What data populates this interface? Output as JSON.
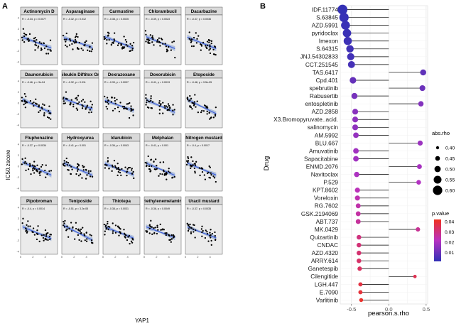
{
  "chart_data": [
    {
      "type": "scatter",
      "panel_label": "A",
      "xlabel": "YAP1",
      "ylabel": "IC50.zscore",
      "xticks": [
        0,
        2,
        4
      ],
      "yticks": [
        -4,
        -2,
        0,
        2,
        4
      ],
      "xlim": [
        0,
        6
      ],
      "ylim": [
        -4.5,
        4.5
      ],
      "facets": [
        {
          "title": "Actinomycin D",
          "stat": "R = -0.34, p = 0.0077",
          "intercept": 0.6,
          "slope": -0.42
        },
        {
          "title": "Asparaginase",
          "stat": "R = -0.32, p = 0.012",
          "intercept": 0.5,
          "slope": -0.38
        },
        {
          "title": "Carmustine",
          "stat": "R = -0.38, p = 0.0025",
          "intercept": 0.7,
          "slope": -0.45
        },
        {
          "title": "Chlorambucil",
          "stat": "R = -0.39, p = 0.0023",
          "intercept": 0.7,
          "slope": -0.46
        },
        {
          "title": "Dacarbazine",
          "stat": "R = -0.37, p = 0.0036",
          "intercept": 0.6,
          "slope": -0.44
        },
        {
          "title": "Daunorubicin",
          "stat": "R = -0.46, p = 3e-04",
          "intercept": 0.8,
          "slope": -0.52
        },
        {
          "title": "Denileukin Diftitox Ontak",
          "stat": "R = -0.32, p = 0.011",
          "intercept": 0.9,
          "slope": -0.4
        },
        {
          "title": "Dexrazoxane",
          "stat": "R = -0.33, p = 0.0097",
          "intercept": 0.6,
          "slope": -0.4
        },
        {
          "title": "Doxorubicin",
          "stat": "R = -0.41, p = 0.0013",
          "intercept": 0.7,
          "slope": -0.48
        },
        {
          "title": "Etoposide",
          "stat": "R = -0.48, p = 9.5e-05",
          "intercept": 0.8,
          "slope": -0.55
        },
        {
          "title": "Fluphenazine",
          "stat": "R = -0.37, p = 0.0034",
          "intercept": 0.9,
          "slope": -0.5
        },
        {
          "title": "Hydroxyurea",
          "stat": "R = -0.41, p = 0.001",
          "intercept": 0.7,
          "slope": -0.47
        },
        {
          "title": "Idarubicin",
          "stat": "R = -0.36, p = 0.0043",
          "intercept": 0.6,
          "slope": -0.43
        },
        {
          "title": "Melphalan",
          "stat": "R = -0.41, p = 0.001",
          "intercept": 0.7,
          "slope": -0.47
        },
        {
          "title": "Nitrogen mustard",
          "stat": "R = -0.4, p = 0.0017",
          "intercept": 0.7,
          "slope": -0.46
        },
        {
          "title": "Pipobroman",
          "stat": "R = -0.4, p = 0.0014",
          "intercept": 0.6,
          "slope": -0.45
        },
        {
          "title": "Teniposide",
          "stat": "R = -0.51, p = 3.2e-05",
          "intercept": 0.9,
          "slope": -0.57
        },
        {
          "title": "Thiotepa",
          "stat": "R = -0.38, p = 0.0031",
          "intercept": 0.6,
          "slope": -0.44
        },
        {
          "title": "Triethylenemelamine",
          "stat": "R = -0.36, p = 0.0049",
          "intercept": 0.6,
          "slope": -0.42
        },
        {
          "title": "Uracil mustard",
          "stat": "R = -0.37, p = 0.0035",
          "intercept": 0.6,
          "slope": -0.43
        }
      ],
      "colors": {
        "points": "#000000",
        "fit_line": "#3b5bdb",
        "ribbon": "#9fb4d8",
        "strip": "#d9d9d9",
        "panel_bg": "#ebebeb"
      }
    },
    {
      "type": "lollipop",
      "panel_label": "B",
      "xlabel": "pearson.s.rho",
      "ylabel": "Drug",
      "xticks": [
        -0.5,
        0.0,
        0.5
      ],
      "xlim": [
        -0.65,
        0.52
      ],
      "legend_size_title": "abs.rho",
      "legend_size_values": [
        "0.40",
        "0.45",
        "0.50",
        "0.55",
        "0.60"
      ],
      "legend_color_title": "p.value",
      "legend_color_ticks": [
        "0.04",
        "0.03",
        "0.02",
        "0.01"
      ],
      "legend_placement": "right",
      "colors": {
        "low": "#3131b5",
        "mid": "#b832c2",
        "high": "#f0321e",
        "stem": "#000000",
        "grid": "#e6e6e6"
      },
      "categories": [
        "IDF.11774",
        "S.63845",
        "AZD.5991",
        "pyridoclax",
        "Imexon",
        "S.64315",
        "JNJ.54302833",
        "CCT.251545",
        "TAS.6417",
        "Cpd.401",
        "spebrutinib",
        "Rabusertib",
        "entospletinib",
        "AZD.2858",
        "X3.Bromopyruvate..acid.",
        "salinomycin",
        "AM.5992",
        "BLU.667",
        "Amuvatinib",
        "Sapacitabine",
        "ENMD.2076",
        "Navitoclax",
        "P.529",
        "KPT.8602",
        "Voreloxin",
        "RG.7602",
        "GSK.2194069",
        "ABT.737",
        "MK.0429",
        "Quizartinib",
        "CNDAC",
        "AZD.4320",
        "ARRY.614",
        "Ganetespib",
        "Cilengitide",
        "LGH.447",
        "E.7090",
        "Varlitinib"
      ],
      "rho": [
        -0.62,
        -0.6,
        -0.58,
        -0.56,
        -0.55,
        -0.52,
        -0.51,
        -0.5,
        0.46,
        -0.48,
        0.45,
        -0.46,
        0.43,
        -0.45,
        -0.45,
        -0.45,
        -0.44,
        0.42,
        -0.44,
        -0.44,
        0.41,
        -0.43,
        0.4,
        -0.42,
        -0.42,
        -0.41,
        -0.41,
        -0.41,
        0.39,
        -0.4,
        -0.4,
        -0.4,
        -0.4,
        -0.39,
        0.35,
        -0.38,
        -0.38,
        -0.37
      ],
      "pvalue": [
        0.001,
        0.0015,
        0.002,
        0.002,
        0.0025,
        0.003,
        0.0035,
        0.004,
        0.008,
        0.009,
        0.01,
        0.012,
        0.014,
        0.015,
        0.016,
        0.016,
        0.017,
        0.018,
        0.019,
        0.019,
        0.02,
        0.021,
        0.022,
        0.024,
        0.025,
        0.026,
        0.027,
        0.028,
        0.029,
        0.032,
        0.033,
        0.034,
        0.035,
        0.036,
        0.038,
        0.04,
        0.041,
        0.043
      ]
    }
  ]
}
